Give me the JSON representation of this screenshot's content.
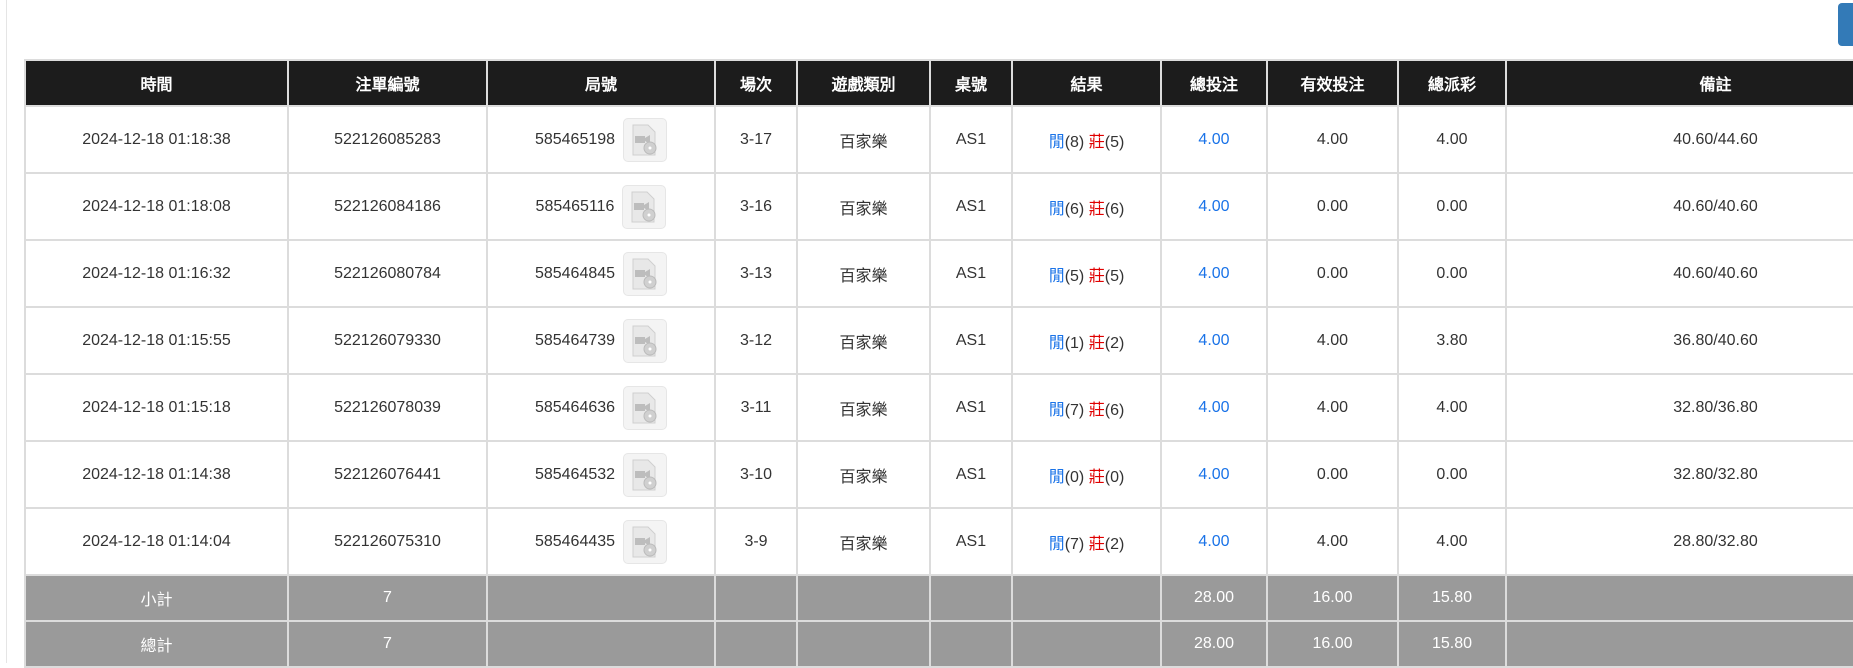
{
  "colors": {
    "header_bg": "#1c1c1c",
    "summary_bg": "#9a9a9a",
    "player": "#1a73e8",
    "banker": "#e00000",
    "bet_link": "#1a73e8",
    "button": "#337ab7"
  },
  "headers": [
    "時間",
    "注單編號",
    "局號",
    "場次",
    "遊戲類別",
    "桌號",
    "結果",
    "總投注",
    "有效投注",
    "總派彩",
    "備註"
  ],
  "rows": [
    {
      "time": "2024-12-18 01:18:38",
      "bet_no": "522126085283",
      "round": "585465198",
      "shoe": "3-17",
      "game": "百家樂",
      "table": "AS1",
      "player_label": "閒",
      "player": "(8)",
      "banker_label": "莊",
      "banker": "(5)",
      "total_bet": "4.00",
      "valid_bet": "4.00",
      "payout": "4.00",
      "note": "40.60/44.60"
    },
    {
      "time": "2024-12-18 01:18:08",
      "bet_no": "522126084186",
      "round": "585465116",
      "shoe": "3-16",
      "game": "百家樂",
      "table": "AS1",
      "player_label": "閒",
      "player": "(6)",
      "banker_label": "莊",
      "banker": "(6)",
      "total_bet": "4.00",
      "valid_bet": "0.00",
      "payout": "0.00",
      "note": "40.60/40.60"
    },
    {
      "time": "2024-12-18 01:16:32",
      "bet_no": "522126080784",
      "round": "585464845",
      "shoe": "3-13",
      "game": "百家樂",
      "table": "AS1",
      "player_label": "閒",
      "player": "(5)",
      "banker_label": "莊",
      "banker": "(5)",
      "total_bet": "4.00",
      "valid_bet": "0.00",
      "payout": "0.00",
      "note": "40.60/40.60"
    },
    {
      "time": "2024-12-18 01:15:55",
      "bet_no": "522126079330",
      "round": "585464739",
      "shoe": "3-12",
      "game": "百家樂",
      "table": "AS1",
      "player_label": "閒",
      "player": "(1)",
      "banker_label": "莊",
      "banker": "(2)",
      "total_bet": "4.00",
      "valid_bet": "4.00",
      "payout": "3.80",
      "note": "36.80/40.60"
    },
    {
      "time": "2024-12-18 01:15:18",
      "bet_no": "522126078039",
      "round": "585464636",
      "shoe": "3-11",
      "game": "百家樂",
      "table": "AS1",
      "player_label": "閒",
      "player": "(7)",
      "banker_label": "莊",
      "banker": "(6)",
      "total_bet": "4.00",
      "valid_bet": "4.00",
      "payout": "4.00",
      "note": "32.80/36.80"
    },
    {
      "time": "2024-12-18 01:14:38",
      "bet_no": "522126076441",
      "round": "585464532",
      "shoe": "3-10",
      "game": "百家樂",
      "table": "AS1",
      "player_label": "閒",
      "player": "(0)",
      "banker_label": "莊",
      "banker": "(0)",
      "total_bet": "4.00",
      "valid_bet": "0.00",
      "payout": "0.00",
      "note": "32.80/32.80"
    },
    {
      "time": "2024-12-18 01:14:04",
      "bet_no": "522126075310",
      "round": "585464435",
      "shoe": "3-9",
      "game": "百家樂",
      "table": "AS1",
      "player_label": "閒",
      "player": "(7)",
      "banker_label": "莊",
      "banker": "(2)",
      "total_bet": "4.00",
      "valid_bet": "4.00",
      "payout": "4.00",
      "note": "28.80/32.80"
    }
  ],
  "subtotal": {
    "label": "小計",
    "count": "7",
    "total_bet": "28.00",
    "valid_bet": "16.00",
    "payout": "15.80"
  },
  "total": {
    "label": "總計",
    "count": "7",
    "total_bet": "28.00",
    "valid_bet": "16.00",
    "payout": "15.80"
  }
}
